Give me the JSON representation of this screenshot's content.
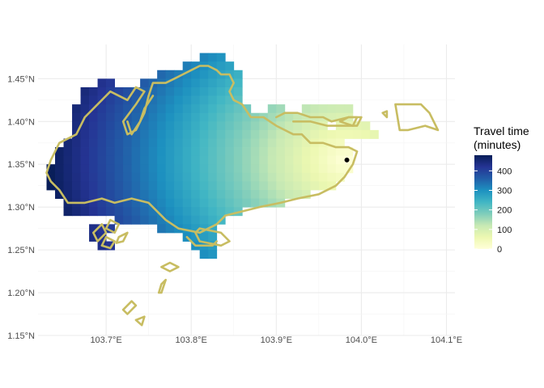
{
  "chart_data": {
    "type": "heatmap",
    "title": "",
    "xlabel": "",
    "ylabel": "",
    "xlim": [
      103.62,
      104.11
    ],
    "ylim": [
      1.15,
      1.49
    ],
    "x_ticks": [
      103.7,
      103.8,
      103.9,
      104.0,
      104.1
    ],
    "x_tick_labels": [
      "103.7°E",
      "103.8°E",
      "103.9°E",
      "104.0°E",
      "104.1°E"
    ],
    "y_ticks": [
      1.15,
      1.2,
      1.25,
      1.3,
      1.35,
      1.4,
      1.45
    ],
    "y_tick_labels": [
      "1.15°N",
      "1.20°N",
      "1.25°N",
      "1.30°N",
      "1.35°N",
      "1.40°N",
      "1.45°N"
    ],
    "grid": true,
    "cell_size_deg": 0.01,
    "origin_point": {
      "lon": 103.983,
      "lat": 1.355
    },
    "max_travel_minutes": 480,
    "legend": {
      "title_lines": [
        "Travel time",
        "(minutes)"
      ],
      "ticks": [
        0,
        100,
        200,
        300,
        400
      ],
      "tick_labels": [
        "0",
        "100",
        "200",
        "300",
        "400"
      ],
      "range": [
        0,
        480
      ],
      "placement": "right"
    },
    "colorscale_name": "YlGnBu",
    "colorscale": [
      [
        0.0,
        "#ffffd9"
      ],
      [
        0.125,
        "#edf8b1"
      ],
      [
        0.25,
        "#c7e9b4"
      ],
      [
        0.375,
        "#7fcdbb"
      ],
      [
        0.5,
        "#41b6c4"
      ],
      [
        0.625,
        "#1d91c0"
      ],
      [
        0.75,
        "#225ea8"
      ],
      [
        0.875,
        "#253494"
      ],
      [
        1.0,
        "#081d58"
      ]
    ],
    "outline_color": "#c8bd62",
    "region_rows": [
      {
        "lat": 1.475,
        "ranges": [
          [
            103.81,
            103.84
          ]
        ]
      },
      {
        "lat": 1.465,
        "ranges": [
          [
            103.79,
            103.85
          ]
        ]
      },
      {
        "lat": 1.455,
        "ranges": [
          [
            103.76,
            103.86
          ]
        ]
      },
      {
        "lat": 1.445,
        "ranges": [
          [
            103.69,
            103.71
          ],
          [
            103.74,
            103.86
          ]
        ]
      },
      {
        "lat": 1.435,
        "ranges": [
          [
            103.67,
            103.72
          ],
          [
            103.72,
            103.86
          ]
        ]
      },
      {
        "lat": 1.425,
        "ranges": [
          [
            103.67,
            103.86
          ]
        ]
      },
      {
        "lat": 1.415,
        "ranges": [
          [
            103.66,
            103.87
          ],
          [
            103.89,
            103.91
          ],
          [
            103.93,
            103.99
          ]
        ]
      },
      {
        "lat": 1.405,
        "ranges": [
          [
            103.66,
            103.99
          ]
        ]
      },
      {
        "lat": 1.395,
        "ranges": [
          [
            103.66,
            103.96
          ],
          [
            103.97,
            104.01
          ]
        ]
      },
      {
        "lat": 1.385,
        "ranges": [
          [
            103.66,
            104.02
          ]
        ]
      },
      {
        "lat": 1.375,
        "ranges": [
          [
            103.65,
            103.98
          ]
        ]
      },
      {
        "lat": 1.365,
        "ranges": [
          [
            103.64,
            103.99
          ]
        ]
      },
      {
        "lat": 1.355,
        "ranges": [
          [
            103.64,
            103.99
          ]
        ]
      },
      {
        "lat": 1.345,
        "ranges": [
          [
            103.63,
            103.99
          ]
        ]
      },
      {
        "lat": 1.335,
        "ranges": [
          [
            103.63,
            103.98
          ]
        ]
      },
      {
        "lat": 1.325,
        "ranges": [
          [
            103.63,
            103.97
          ]
        ]
      },
      {
        "lat": 1.315,
        "ranges": [
          [
            103.64,
            103.94
          ]
        ]
      },
      {
        "lat": 1.305,
        "ranges": [
          [
            103.65,
            103.91
          ]
        ]
      },
      {
        "lat": 1.295,
        "ranges": [
          [
            103.65,
            103.86
          ]
        ]
      },
      {
        "lat": 1.285,
        "ranges": [
          [
            103.71,
            103.84
          ]
        ]
      },
      {
        "lat": 1.275,
        "ranges": [
          [
            103.68,
            103.71
          ],
          [
            103.76,
            103.83
          ]
        ]
      },
      {
        "lat": 1.265,
        "ranges": [
          [
            103.68,
            103.7
          ],
          [
            103.79,
            103.83
          ]
        ]
      },
      {
        "lat": 1.255,
        "ranges": [
          [
            103.69,
            103.71
          ],
          [
            103.8,
            103.83
          ]
        ]
      },
      {
        "lat": 1.245,
        "ranges": [
          [
            103.81,
            103.83
          ]
        ]
      }
    ],
    "outlines": [
      [
        [
          103.635,
          1.355
        ],
        [
          103.645,
          1.375
        ],
        [
          103.665,
          1.385
        ],
        [
          103.675,
          1.405
        ],
        [
          103.695,
          1.425
        ],
        [
          103.705,
          1.435
        ],
        [
          103.725,
          1.425
        ],
        [
          103.735,
          1.44
        ],
        [
          103.745,
          1.435
        ],
        [
          103.735,
          1.42
        ],
        [
          103.72,
          1.4
        ],
        [
          103.725,
          1.385
        ],
        [
          103.735,
          1.39
        ],
        [
          103.745,
          1.41
        ],
        [
          103.75,
          1.43
        ],
        [
          103.755,
          1.445
        ],
        [
          103.77,
          1.445
        ],
        [
          103.78,
          1.45
        ],
        [
          103.79,
          1.455
        ],
        [
          103.8,
          1.46
        ],
        [
          103.81,
          1.465
        ],
        [
          103.82,
          1.465
        ],
        [
          103.83,
          1.46
        ],
        [
          103.835,
          1.455
        ],
        [
          103.845,
          1.455
        ],
        [
          103.85,
          1.445
        ],
        [
          103.845,
          1.435
        ],
        [
          103.85,
          1.425
        ],
        [
          103.86,
          1.42
        ],
        [
          103.87,
          1.405
        ],
        [
          103.885,
          1.405
        ],
        [
          103.9,
          1.395
        ],
        [
          103.92,
          1.385
        ],
        [
          103.93,
          1.385
        ],
        [
          103.94,
          1.375
        ],
        [
          103.955,
          1.375
        ],
        [
          103.97,
          1.37
        ],
        [
          103.985,
          1.37
        ],
        [
          103.995,
          1.365
        ],
        [
          103.99,
          1.35
        ],
        [
          103.98,
          1.335
        ],
        [
          103.97,
          1.325
        ],
        [
          103.95,
          1.315
        ],
        [
          103.925,
          1.31
        ],
        [
          103.905,
          1.305
        ],
        [
          103.88,
          1.3
        ],
        [
          103.86,
          1.295
        ],
        [
          103.84,
          1.29
        ],
        [
          103.83,
          1.28
        ],
        [
          103.81,
          1.27
        ],
        [
          103.785,
          1.275
        ],
        [
          103.77,
          1.285
        ],
        [
          103.75,
          1.305
        ],
        [
          103.73,
          1.31
        ],
        [
          103.71,
          1.305
        ],
        [
          103.695,
          1.31
        ],
        [
          103.675,
          1.305
        ],
        [
          103.655,
          1.305
        ],
        [
          103.645,
          1.32
        ],
        [
          103.635,
          1.33
        ],
        [
          103.63,
          1.34
        ],
        [
          103.635,
          1.355
        ]
      ],
      [
        [
          103.755,
          1.43
        ],
        [
          103.745,
          1.415
        ],
        [
          103.74,
          1.4
        ],
        [
          103.73,
          1.385
        ],
        [
          103.725,
          1.4
        ]
      ],
      [
        [
          103.81,
          1.26
        ],
        [
          103.805,
          1.27
        ],
        [
          103.81,
          1.275
        ],
        [
          103.835,
          1.27
        ],
        [
          103.845,
          1.26
        ],
        [
          103.835,
          1.255
        ],
        [
          103.81,
          1.26
        ]
      ],
      [
        [
          103.795,
          1.265
        ],
        [
          103.805,
          1.255
        ],
        [
          103.825,
          1.255
        ],
        [
          103.83,
          1.26
        ]
      ],
      [
        [
          103.7,
          1.275
        ],
        [
          103.705,
          1.285
        ],
        [
          103.715,
          1.28
        ],
        [
          103.71,
          1.27
        ],
        [
          103.7,
          1.275
        ]
      ],
      [
        [
          103.685,
          1.27
        ],
        [
          103.695,
          1.28
        ],
        [
          103.7,
          1.27
        ],
        [
          103.69,
          1.26
        ],
        [
          103.685,
          1.27
        ]
      ],
      [
        [
          103.695,
          1.255
        ],
        [
          103.7,
          1.265
        ],
        [
          103.71,
          1.26
        ],
        [
          103.705,
          1.252
        ],
        [
          103.695,
          1.255
        ]
      ],
      [
        [
          103.715,
          1.265
        ],
        [
          103.725,
          1.27
        ],
        [
          103.72,
          1.26
        ],
        [
          103.712,
          1.258
        ],
        [
          103.715,
          1.265
        ]
      ],
      [
        [
          103.765,
          1.23
        ],
        [
          103.775,
          1.235
        ],
        [
          103.785,
          1.23
        ],
        [
          103.775,
          1.225
        ],
        [
          103.765,
          1.23
        ]
      ],
      [
        [
          103.765,
          1.2
        ],
        [
          103.77,
          1.215
        ],
        [
          103.765,
          1.21
        ],
        [
          103.762,
          1.2
        ],
        [
          103.765,
          1.2
        ]
      ],
      [
        [
          103.72,
          1.18
        ],
        [
          103.73,
          1.19
        ],
        [
          103.735,
          1.185
        ],
        [
          103.725,
          1.175
        ],
        [
          103.72,
          1.18
        ]
      ],
      [
        [
          103.735,
          1.168
        ],
        [
          103.745,
          1.172
        ],
        [
          103.742,
          1.162
        ],
        [
          103.735,
          1.168
        ]
      ],
      [
        [
          103.9,
          1.405
        ],
        [
          103.91,
          1.41
        ],
        [
          103.925,
          1.41
        ],
        [
          103.94,
          1.405
        ],
        [
          103.955,
          1.405
        ],
        [
          103.965,
          1.4
        ],
        [
          103.985,
          1.405
        ],
        [
          104.0,
          1.405
        ],
        [
          103.995,
          1.395
        ],
        [
          103.975,
          1.395
        ],
        [
          103.96,
          1.395
        ],
        [
          103.94,
          1.4
        ],
        [
          103.92,
          1.4
        ]
      ],
      [
        [
          103.975,
          1.4
        ],
        [
          103.985,
          1.405
        ],
        [
          103.995,
          1.405
        ],
        [
          103.99,
          1.395
        ],
        [
          103.975,
          1.4
        ]
      ],
      [
        [
          104.025,
          1.41
        ],
        [
          104.03,
          1.405
        ],
        [
          104.03,
          1.412
        ],
        [
          104.025,
          1.41
        ]
      ],
      [
        [
          104.04,
          1.42
        ],
        [
          104.045,
          1.39
        ],
        [
          104.055,
          1.39
        ],
        [
          104.075,
          1.395
        ],
        [
          104.09,
          1.39
        ],
        [
          104.08,
          1.41
        ],
        [
          104.07,
          1.42
        ],
        [
          104.055,
          1.42
        ],
        [
          104.04,
          1.42
        ]
      ]
    ]
  }
}
